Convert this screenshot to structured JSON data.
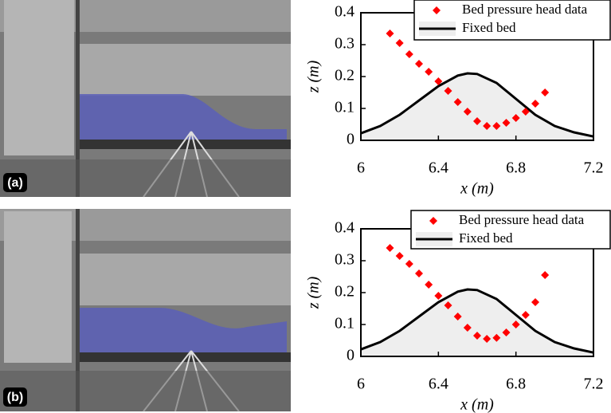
{
  "chart_data": [
    {
      "type": "scatter-line",
      "panel_label": "(a)",
      "xlabel": "x (m)",
      "ylabel": "z (m)",
      "xlim": [
        6,
        7.2
      ],
      "xticks": [
        6,
        6.4,
        6.8,
        7.2
      ],
      "ylim": [
        0,
        0.4
      ],
      "yticks": [
        0,
        0.1,
        0.2,
        0.3,
        0.4
      ],
      "series": [
        {
          "name": "Bed pressure head data",
          "color": "#ff0000",
          "x": [
            6.15,
            6.2,
            6.25,
            6.3,
            6.35,
            6.4,
            6.45,
            6.5,
            6.55,
            6.6,
            6.65,
            6.7,
            6.75,
            6.8,
            6.85,
            6.9,
            6.95
          ],
          "values": [
            0.335,
            0.305,
            0.27,
            0.24,
            0.215,
            0.185,
            0.155,
            0.12,
            0.09,
            0.06,
            0.045,
            0.045,
            0.055,
            0.07,
            0.09,
            0.115,
            0.15
          ]
        },
        {
          "name": "Fixed bed",
          "color": "#000000",
          "fill": "#eeeeee",
          "x": [
            6,
            6.1,
            6.2,
            6.3,
            6.4,
            6.5,
            6.55,
            6.6,
            6.7,
            6.8,
            6.9,
            7.0,
            7.1,
            7.2
          ],
          "values": [
            0.022,
            0.045,
            0.08,
            0.125,
            0.17,
            0.203,
            0.21,
            0.208,
            0.18,
            0.13,
            0.08,
            0.045,
            0.025,
            0.012
          ]
        }
      ]
    },
    {
      "type": "scatter-line",
      "panel_label": "(b)",
      "xlabel": "x (m)",
      "ylabel": "z (m)",
      "xlim": [
        6,
        7.2
      ],
      "xticks": [
        6,
        6.4,
        6.8,
        7.2
      ],
      "ylim": [
        0,
        0.4
      ],
      "yticks": [
        0,
        0.1,
        0.2,
        0.3,
        0.4
      ],
      "series": [
        {
          "name": "Bed pressure head data",
          "color": "#ff0000",
          "x": [
            6.15,
            6.2,
            6.25,
            6.3,
            6.35,
            6.4,
            6.45,
            6.5,
            6.55,
            6.6,
            6.65,
            6.7,
            6.75,
            6.8,
            6.85,
            6.9,
            6.95
          ],
          "values": [
            0.34,
            0.315,
            0.29,
            0.26,
            0.225,
            0.19,
            0.16,
            0.125,
            0.09,
            0.065,
            0.055,
            0.058,
            0.075,
            0.1,
            0.13,
            0.17,
            0.255
          ]
        },
        {
          "name": "Fixed bed",
          "color": "#000000",
          "fill": "#eeeeee",
          "x": [
            6,
            6.1,
            6.2,
            6.3,
            6.4,
            6.5,
            6.55,
            6.6,
            6.7,
            6.8,
            6.9,
            7.0,
            7.1,
            7.2
          ],
          "values": [
            0.022,
            0.045,
            0.08,
            0.125,
            0.17,
            0.203,
            0.21,
            0.208,
            0.18,
            0.13,
            0.08,
            0.045,
            0.025,
            0.012
          ]
        }
      ]
    }
  ]
}
